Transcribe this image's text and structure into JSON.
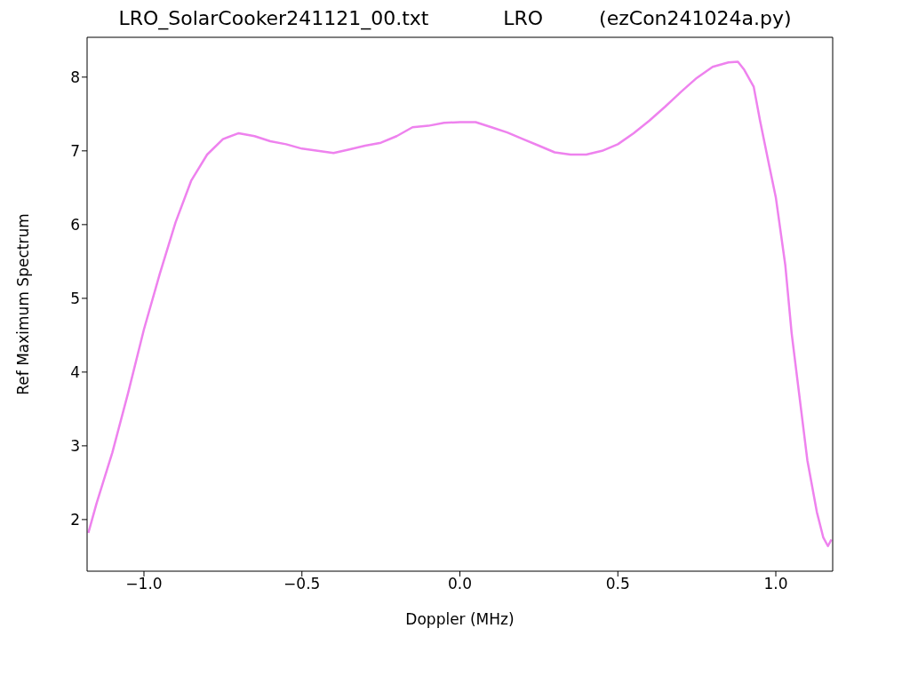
{
  "chart_data": {
    "type": "line",
    "title": "LRO_SolarCooker241121_00.txt            LRO         (ezCon241024a.py)",
    "xlabel": "Doppler (MHz)",
    "ylabel": "Ref Maximum Spectrum",
    "xlim": [
      -1.18,
      1.18
    ],
    "ylim": [
      1.3,
      8.54
    ],
    "xticks": [
      {
        "value": -1,
        "label": "−1.0"
      },
      {
        "value": -0.5,
        "label": "−0.5"
      },
      {
        "value": 0,
        "label": "0.0"
      },
      {
        "value": 0.5,
        "label": "0.5"
      },
      {
        "value": 1,
        "label": "1.0"
      }
    ],
    "yticks": [
      2,
      3,
      4,
      5,
      6,
      7,
      8
    ],
    "grid": false,
    "legend": false,
    "marker": "none",
    "line_style": "solid",
    "x": [
      -1.176,
      -1.15,
      -1.1,
      -1.05,
      -1.0,
      -0.95,
      -0.9,
      -0.85,
      -0.8,
      -0.75,
      -0.7,
      -0.65,
      -0.6,
      -0.55,
      -0.5,
      -0.45,
      -0.4,
      -0.35,
      -0.3,
      -0.25,
      -0.2,
      -0.15,
      -0.1,
      -0.05,
      0,
      0.05,
      0.1,
      0.15,
      0.2,
      0.25,
      0.3,
      0.35,
      0.4,
      0.45,
      0.5,
      0.55,
      0.6,
      0.65,
      0.7,
      0.75,
      0.8,
      0.85,
      0.88,
      0.9,
      0.93,
      0.95,
      0.98,
      1.0,
      1.03,
      1.05,
      1.08,
      1.1,
      1.13,
      1.15,
      1.165,
      1.176
    ],
    "series": [
      {
        "color": "#ee82ee",
        "values": [
          1.82,
          2.22,
          2.91,
          3.72,
          4.58,
          5.33,
          6.03,
          6.6,
          6.95,
          7.16,
          7.24,
          7.2,
          7.13,
          7.09,
          7.03,
          7.0,
          6.97,
          7.02,
          7.07,
          7.11,
          7.2,
          7.32,
          7.34,
          7.38,
          7.39,
          7.39,
          7.32,
          7.25,
          7.16,
          7.07,
          6.98,
          6.95,
          6.95,
          7.0,
          7.09,
          7.24,
          7.41,
          7.6,
          7.8,
          7.99,
          8.14,
          8.2,
          8.21,
          8.1,
          7.87,
          7.41,
          6.78,
          6.37,
          5.45,
          4.53,
          3.49,
          2.8,
          2.1,
          1.76,
          1.64,
          1.73
        ]
      }
    ]
  }
}
